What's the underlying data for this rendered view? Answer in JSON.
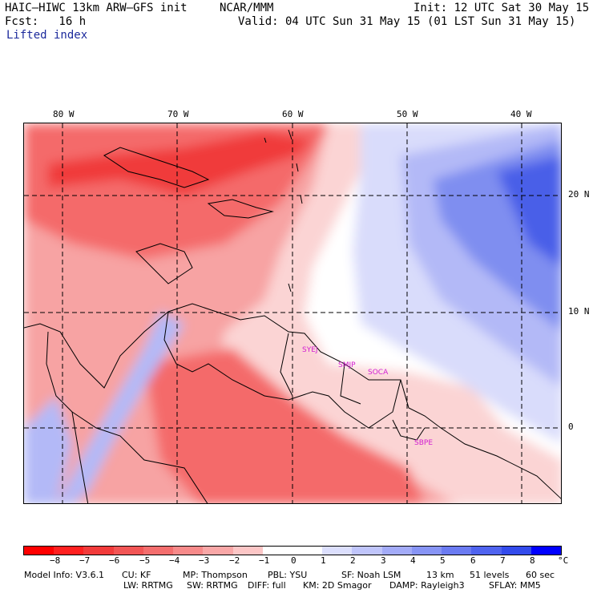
{
  "header": {
    "model_title": "HAIC–HIWC 13km ARW–GFS init",
    "org": "NCAR/MMM",
    "init": "Init: 12 UTC Sat 30 May 15",
    "forecast": "Fcst:   16 h",
    "valid": "Valid: 04 UTC Sun 31 May 15 (01 LST Sun 31 May 15)",
    "field": "Lifted index"
  },
  "map": {
    "lon_labels": [
      "80 W",
      "70 W",
      "60 W",
      "50 W",
      "40 W"
    ],
    "lat_labels": [
      "20 N",
      "10 N",
      "0"
    ],
    "stations": [
      "SYEJ",
      "SMJP",
      "SOCA",
      "SBPE"
    ],
    "colors": {
      "strong_red": "#f03a3a",
      "mid_red": "#f46a6a",
      "light_red": "#f7a3a3",
      "pale_red": "#fbd4d4",
      "white": "#ffffff",
      "pale_blue": "#d9dcfb",
      "light_blue": "#b3b9f7",
      "mid_blue": "#7f8ef0",
      "strong_blue": "#4a5ee8"
    }
  },
  "colorbar": {
    "colors": [
      "#ff0000",
      "#ff2020",
      "#f23b3b",
      "#f25555",
      "#f46e6e",
      "#f78a8a",
      "#f9a7a7",
      "#fcc6c6",
      "#ffffff",
      "#ffffff",
      "#dcdffd",
      "#c0c5fb",
      "#a3abf8",
      "#8794f5",
      "#6b7bf2",
      "#4f63ef",
      "#334bec",
      "#0000ff"
    ],
    "labels": [
      "−8",
      "−7",
      "−6",
      "−5",
      "−4",
      "−3",
      "−2",
      "−1",
      "0",
      "1",
      "2",
      "3",
      "4",
      "5",
      "6",
      "7",
      "8"
    ],
    "unit": "°C"
  },
  "model_info": {
    "line1": [
      "Model Info: V3.6.1",
      "CU: KF",
      "MP: Thompson",
      "PBL: YSU",
      "SF: Noah LSM",
      "13 km",
      "51 levels",
      "60 sec"
    ],
    "line2": [
      "LW: RRTMG",
      "SW: RRTMG",
      "DIFF: full",
      "KM: 2D Smagor",
      "DAMP: Rayleigh3",
      "SFLAY: MM5"
    ]
  }
}
